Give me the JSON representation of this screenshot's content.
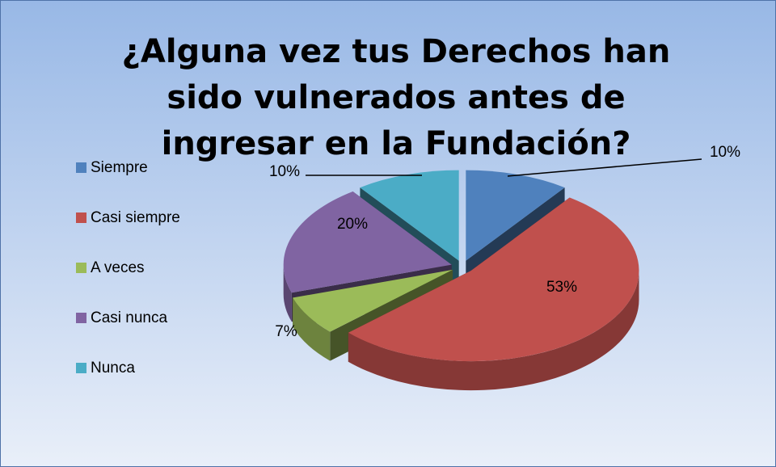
{
  "chart_data": {
    "type": "pie3d",
    "title": "¿Alguna vez tus Derechos han sido vulnerados antes de ingresar en la Fundación?",
    "categories": [
      "Siempre",
      "Casi siempre",
      "A veces",
      "Casi nunca",
      "Nunca"
    ],
    "values": [
      10,
      53,
      7,
      20,
      10
    ],
    "value_labels": [
      "10%",
      "53%",
      "7%",
      "20%",
      "10%"
    ],
    "colors": [
      "#4f81bd",
      "#c0504d",
      "#9bbb59",
      "#8064a2",
      "#4bacc6"
    ],
    "legend": "left"
  }
}
